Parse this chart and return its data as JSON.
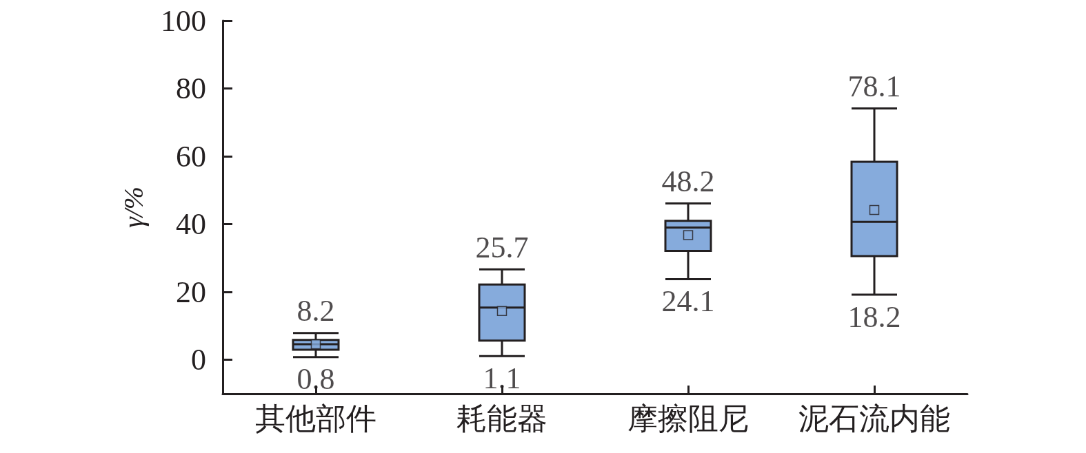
{
  "chart_data": {
    "type": "box",
    "ylabel": "γ/%",
    "categories": [
      "其他部件",
      "耗能器",
      "摩擦阻尼",
      "泥石流内能"
    ],
    "color": "#86abdc",
    "ylim": [
      -10,
      100
    ],
    "yticks": [
      0,
      20,
      40,
      60,
      80,
      100
    ],
    "grid": false,
    "boxes": [
      {
        "low": 0.8,
        "q1": 3.0,
        "median": 4.6,
        "q3": 5.9,
        "high": 7.9,
        "mean": 4.6
      },
      {
        "low": 1.1,
        "q1": 5.7,
        "median": 15.4,
        "q3": 22.2,
        "high": 26.7,
        "mean": 14.4
      },
      {
        "low": 23.8,
        "q1": 32.1,
        "median": 39.0,
        "q3": 41.0,
        "high": 46.1,
        "mean": 36.8
      },
      {
        "low": 19.2,
        "q1": 30.6,
        "median": 40.7,
        "q3": 58.4,
        "high": 74.1,
        "mean": 44.2
      }
    ],
    "annotations": [
      {
        "text": "8.2",
        "x": "其他部件",
        "y": 7.9
      },
      {
        "text": "0.8",
        "x": "其他部件",
        "y": 0.8
      },
      {
        "text": "25.7",
        "x": "耗能器",
        "y": 26.7
      },
      {
        "text": "1.1",
        "x": "耗能器",
        "y": 1.1
      },
      {
        "text": "48.2",
        "x": "摩擦阻尼",
        "y": 46.1
      },
      {
        "text": "24.1",
        "x": "摩擦阻尼",
        "y": 23.8
      },
      {
        "text": "78.1",
        "x": "泥石流内能",
        "y": 74.1
      },
      {
        "text": "18.2",
        "x": "泥石流内能",
        "y": 19.2
      }
    ]
  }
}
